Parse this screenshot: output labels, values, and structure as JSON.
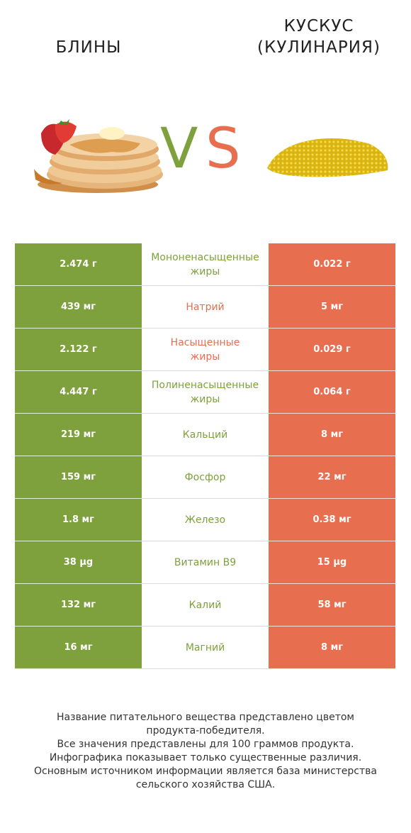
{
  "titles": {
    "left": "БЛИНЫ",
    "right_line1": "КУСКУС",
    "right_line2": "(КУЛИНАРИЯ)"
  },
  "vs": {
    "v": "V",
    "s": "S"
  },
  "colors": {
    "left": "#7ea03d",
    "right": "#e86e50"
  },
  "rows": [
    {
      "left": "2.474 г",
      "name1": "Мононенасыщенные",
      "name2": "жиры",
      "right": "0.022 г",
      "winner": "left"
    },
    {
      "left": "439 мг",
      "name1": "Натрий",
      "name2": "",
      "right": "5 мг",
      "winner": "right"
    },
    {
      "left": "2.122 г",
      "name1": "Насыщенные",
      "name2": "жиры",
      "right": "0.029 г",
      "winner": "right"
    },
    {
      "left": "4.447 г",
      "name1": "Полиненасыщенные",
      "name2": "жиры",
      "right": "0.064 г",
      "winner": "left"
    },
    {
      "left": "219 мг",
      "name1": "Кальций",
      "name2": "",
      "right": "8 мг",
      "winner": "left"
    },
    {
      "left": "159 мг",
      "name1": "Фосфор",
      "name2": "",
      "right": "22 мг",
      "winner": "left"
    },
    {
      "left": "1.8 мг",
      "name1": "Железо",
      "name2": "",
      "right": "0.38 мг",
      "winner": "left"
    },
    {
      "left": "38 µg",
      "name1": "Витамин B9",
      "name2": "",
      "right": "15 µg",
      "winner": "left"
    },
    {
      "left": "132 мг",
      "name1": "Калий",
      "name2": "",
      "right": "58 мг",
      "winner": "left"
    },
    {
      "left": "16 мг",
      "name1": "Магний",
      "name2": "",
      "right": "8 мг",
      "winner": "left"
    }
  ],
  "footer": [
    "Название питательного вещества представлено цветом",
    "продукта-победителя.",
    "Все значения представлены для 100 граммов продукта.",
    "Инфографика показывает только существенные различия.",
    "Основным источником информации является база министерства",
    "сельского хозяйства США."
  ]
}
